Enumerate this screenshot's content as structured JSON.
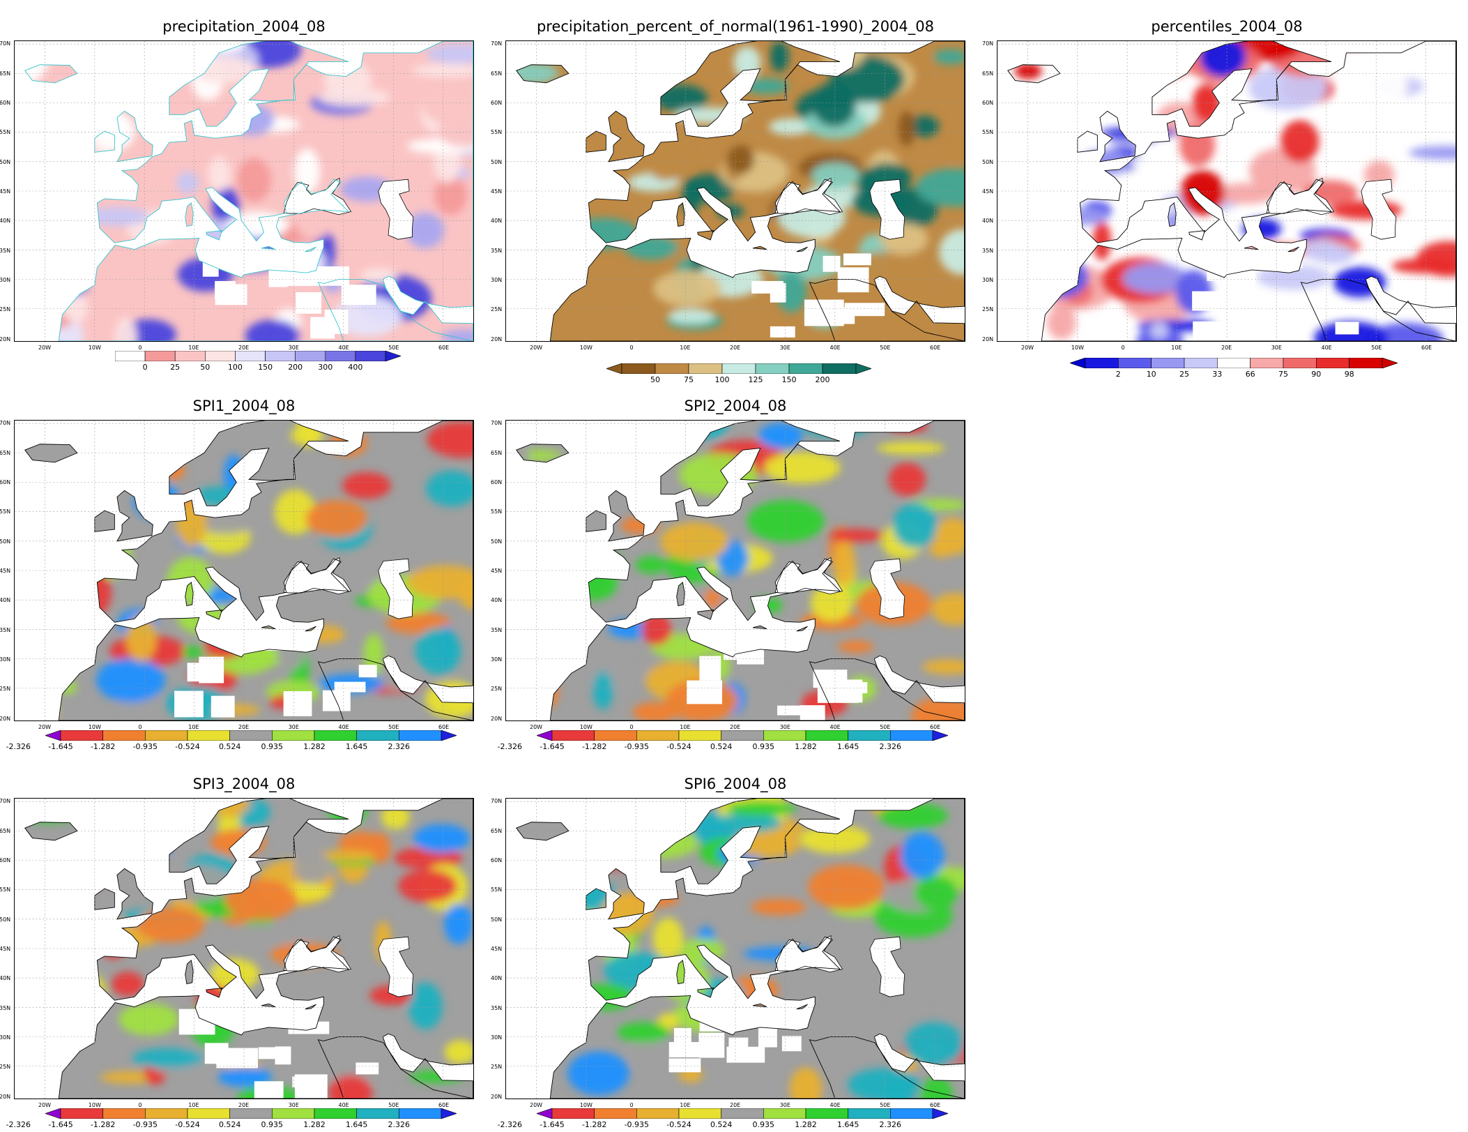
{
  "lat_ticks": [
    "70N",
    "65N",
    "60N",
    "55N",
    "50N",
    "45N",
    "40N",
    "35N",
    "30N",
    "25N",
    "20N"
  ],
  "lon_ticks": [
    "20W",
    "10W",
    "0",
    "10E",
    "20E",
    "30E",
    "40E",
    "50E",
    "60E"
  ],
  "panels": [
    {
      "id": "precipitation",
      "title": "precipitation_2004_08",
      "colorbar": {
        "colors": [
          "#ffffff",
          "#f49a9a",
          "#fbc4c4",
          "#fde4e4",
          "#e6e4fb",
          "#c8c6f6",
          "#a9a6f0",
          "#7a75e6",
          "#4a45dc"
        ],
        "ticks": [
          "0",
          "25",
          "50",
          "100",
          "150",
          "200",
          "300",
          "400"
        ],
        "left_arrow": "none",
        "right_arrow": "#1f1fd0"
      }
    },
    {
      "id": "percent-of-normal",
      "title": "precipitation_percent_of_normal(1961-1990)_2004_08",
      "colorbar": {
        "colors": [
          "#8c5a1e",
          "#bf8a45",
          "#dcc083",
          "#c8ebe3",
          "#85cfc0",
          "#3fa897",
          "#0f6e62"
        ],
        "ticks": [
          "50",
          "75",
          "100",
          "125",
          "150",
          "200"
        ],
        "left_arrow": "#8c5a1e",
        "right_arrow": "#0f6e62"
      }
    },
    {
      "id": "percentiles",
      "title": "percentiles_2004_08",
      "colorbar": {
        "colors": [
          "#1818e0",
          "#5a5aec",
          "#9898f2",
          "#c9c9f8",
          "#ffffff",
          "#f7a8a8",
          "#f06a6a",
          "#e82c2c",
          "#d80000"
        ],
        "ticks": [
          "2",
          "10",
          "25",
          "33",
          "66",
          "75",
          "90",
          "98"
        ],
        "left_arrow": "#0000d0",
        "right_arrow": "#d00000"
      }
    },
    {
      "id": "spi1",
      "title": "SPI1_2004_08",
      "colorbar": {
        "colors": [
          "#e83a3a",
          "#f08030",
          "#e8b030",
          "#e8e030",
          "#a0a0a0",
          "#a0e040",
          "#30d030",
          "#20b0c0",
          "#2090ff"
        ],
        "ticks": [
          "-2.326",
          "-1.645",
          "-1.282",
          "-0.935",
          "-0.524",
          "0.524",
          "0.935",
          "1.282",
          "1.645",
          "2.326"
        ],
        "left_arrow": "#9000d0",
        "right_arrow": "#2020e0"
      }
    },
    {
      "id": "spi2",
      "title": "SPI2_2004_08",
      "colorbar": {
        "colors": [
          "#e83a3a",
          "#f08030",
          "#e8b030",
          "#e8e030",
          "#a0a0a0",
          "#a0e040",
          "#30d030",
          "#20b0c0",
          "#2090ff"
        ],
        "ticks": [
          "-2.326",
          "-1.645",
          "-1.282",
          "-0.935",
          "-0.524",
          "0.524",
          "0.935",
          "1.282",
          "1.645",
          "2.326"
        ],
        "left_arrow": "#9000d0",
        "right_arrow": "#2020e0"
      }
    },
    {
      "id": "spi3",
      "title": "SPI3_2004_08",
      "colorbar": {
        "colors": [
          "#e83a3a",
          "#f08030",
          "#e8b030",
          "#e8e030",
          "#a0a0a0",
          "#a0e040",
          "#30d030",
          "#20b0c0",
          "#2090ff"
        ],
        "ticks": [
          "-2.326",
          "-1.645",
          "-1.282",
          "-0.935",
          "-0.524",
          "0.524",
          "0.935",
          "1.282",
          "1.645",
          "2.326"
        ],
        "left_arrow": "#9000d0",
        "right_arrow": "#2020e0"
      }
    },
    {
      "id": "spi6",
      "title": "SPI6_2004_08",
      "colorbar": {
        "colors": [
          "#e83a3a",
          "#f08030",
          "#e8b030",
          "#e8e030",
          "#a0a0a0",
          "#a0e040",
          "#30d030",
          "#20b0c0",
          "#2090ff"
        ],
        "ticks": [
          "-2.326",
          "-1.645",
          "-1.282",
          "-0.935",
          "-0.524",
          "0.524",
          "0.935",
          "1.282",
          "1.645",
          "2.326"
        ],
        "left_arrow": "#9000d0",
        "right_arrow": "#2020e0"
      }
    }
  ]
}
